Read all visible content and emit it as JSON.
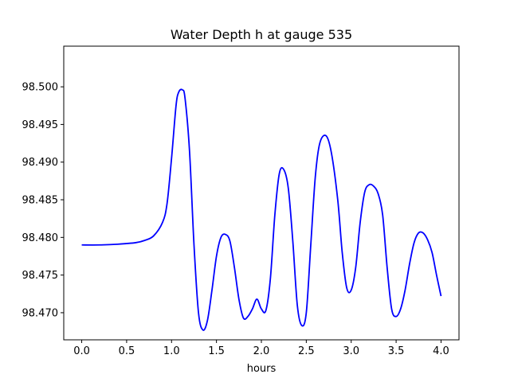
{
  "chart_data": {
    "type": "line",
    "title": "Water Depth h at gauge 535",
    "xlabel": "hours",
    "ylabel": "",
    "xlim": [
      -0.2,
      4.2
    ],
    "ylim": [
      98.4664,
      98.5054
    ],
    "x_ticks": [
      0.0,
      0.5,
      1.0,
      1.5,
      2.0,
      2.5,
      3.0,
      3.5,
      4.0
    ],
    "x_tick_labels": [
      "0.0",
      "0.5",
      "1.0",
      "1.5",
      "2.0",
      "2.5",
      "3.0",
      "3.5",
      "4.0"
    ],
    "y_ticks": [
      98.47,
      98.475,
      98.48,
      98.485,
      98.49,
      98.495,
      98.5
    ],
    "y_tick_labels": [
      "98.470",
      "98.475",
      "98.480",
      "98.485",
      "98.490",
      "98.495",
      "98.500"
    ],
    "grid": false,
    "line_color": "#0000ff",
    "series": [
      {
        "x": [
          0.0,
          0.2,
          0.4,
          0.6,
          0.7,
          0.8,
          0.9,
          0.95,
          1.0,
          1.05,
          1.08,
          1.12,
          1.15,
          1.2,
          1.25,
          1.3,
          1.35,
          1.4,
          1.45,
          1.5,
          1.55,
          1.6,
          1.65,
          1.7,
          1.75,
          1.8,
          1.85,
          1.9,
          1.95,
          2.0,
          2.05,
          2.1,
          2.15,
          2.2,
          2.25,
          2.3,
          2.35,
          2.4,
          2.45,
          2.5,
          2.55,
          2.6,
          2.65,
          2.72,
          2.78,
          2.85,
          2.9,
          2.95,
          3.0,
          3.05,
          3.1,
          3.15,
          3.2,
          3.25,
          3.3,
          3.35,
          3.4,
          3.45,
          3.5,
          3.55,
          3.6,
          3.65,
          3.7,
          3.75,
          3.8,
          3.85,
          3.9,
          3.95,
          4.0
        ],
        "values": [
          98.479,
          98.479,
          98.4791,
          98.4793,
          98.4796,
          98.4802,
          98.482,
          98.4845,
          98.4905,
          98.4975,
          98.4993,
          98.4996,
          98.4985,
          98.4915,
          98.479,
          98.47,
          98.4677,
          98.469,
          98.473,
          98.4775,
          98.48,
          98.4804,
          98.4795,
          98.476,
          98.4718,
          98.4693,
          98.4695,
          98.4705,
          98.4718,
          98.4705,
          98.4703,
          98.4745,
          98.483,
          98.4885,
          98.489,
          98.4865,
          98.4795,
          98.471,
          98.4683,
          98.47,
          98.479,
          98.488,
          98.4925,
          98.4935,
          98.4912,
          98.485,
          98.478,
          98.4733,
          98.473,
          98.476,
          98.482,
          98.486,
          98.487,
          98.4868,
          98.4858,
          98.483,
          98.476,
          98.4705,
          98.4695,
          98.4705,
          98.473,
          98.4765,
          98.4793,
          98.4806,
          98.4806,
          98.4797,
          98.478,
          98.475,
          98.4722
        ]
      }
    ]
  }
}
